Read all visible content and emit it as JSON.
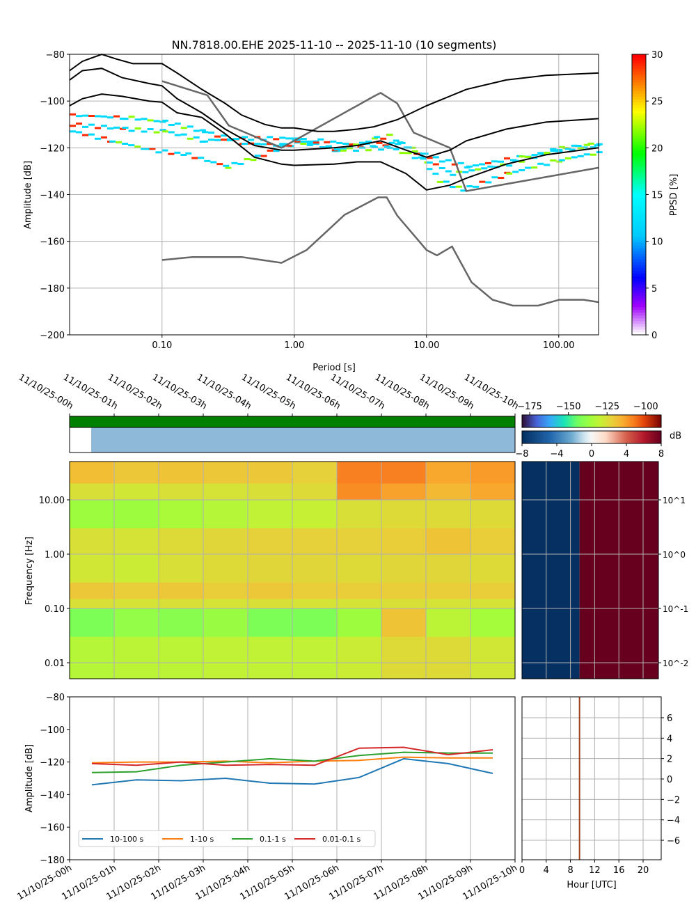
{
  "chart_data": [
    {
      "type": "heatmap",
      "title": "NN.7818.00.EHE   2025-11-10 -- 2025-11-10  (10 segments)",
      "xlabel": "Period [s]",
      "ylabel": "Amplitude [dB]",
      "xscale": "log",
      "xlim": [
        0.02,
        200
      ],
      "ylim": [
        -200,
        -80
      ],
      "xticks": [
        0.1,
        1,
        10,
        100
      ],
      "xtick_labels": [
        "0.10",
        "1.00",
        "10.00",
        "100.00"
      ],
      "yticks": [
        -200,
        -180,
        -160,
        -140,
        -120,
        -100,
        -80
      ],
      "grid": true,
      "colorbar": {
        "label": "PPSD [%]",
        "range": [
          0,
          30
        ],
        "ticks": [
          0,
          5,
          10,
          15,
          20,
          25,
          30
        ],
        "colormap": "pqlx"
      },
      "percentile_curves": [
        [
          [
            0.02,
            -87
          ],
          [
            0.025,
            -83
          ],
          [
            0.035,
            -80
          ],
          [
            0.045,
            -82
          ],
          [
            0.06,
            -84
          ],
          [
            0.1,
            -84
          ],
          [
            0.13,
            -88
          ],
          [
            0.2,
            -95
          ],
          [
            0.3,
            -101
          ],
          [
            0.4,
            -106
          ],
          [
            0.6,
            -110
          ],
          [
            0.8,
            -111.5
          ],
          [
            1,
            -111.5
          ],
          [
            1.5,
            -113
          ],
          [
            2,
            -113
          ],
          [
            3,
            -112
          ],
          [
            4,
            -111
          ],
          [
            6,
            -108
          ],
          [
            10,
            -102
          ],
          [
            20,
            -95
          ],
          [
            40,
            -91
          ],
          [
            80,
            -89
          ],
          [
            200,
            -88
          ]
        ],
        [
          [
            0.02,
            -91
          ],
          [
            0.025,
            -87
          ],
          [
            0.035,
            -86
          ],
          [
            0.05,
            -90
          ],
          [
            0.08,
            -92.5
          ],
          [
            0.1,
            -93.5
          ],
          [
            0.13,
            -99
          ],
          [
            0.2,
            -105
          ],
          [
            0.3,
            -112
          ],
          [
            0.5,
            -119
          ],
          [
            0.8,
            -121
          ],
          [
            1,
            -121
          ],
          [
            2,
            -120
          ],
          [
            3,
            -119
          ],
          [
            4.5,
            -117
          ],
          [
            7,
            -121
          ],
          [
            10,
            -124
          ],
          [
            15,
            -121
          ],
          [
            20,
            -117
          ],
          [
            40,
            -112
          ],
          [
            80,
            -109
          ],
          [
            200,
            -107.5
          ]
        ],
        [
          [
            0.02,
            -102
          ],
          [
            0.025,
            -99
          ],
          [
            0.035,
            -97
          ],
          [
            0.05,
            -98
          ],
          [
            0.08,
            -100
          ],
          [
            0.1,
            -100.5
          ],
          [
            0.13,
            -105
          ],
          [
            0.2,
            -107
          ],
          [
            0.3,
            -114
          ],
          [
            0.5,
            -124
          ],
          [
            0.8,
            -127
          ],
          [
            1,
            -127.5
          ],
          [
            2,
            -127
          ],
          [
            3,
            -126
          ],
          [
            4.5,
            -126
          ],
          [
            7,
            -131
          ],
          [
            10,
            -138
          ],
          [
            15,
            -136
          ],
          [
            20,
            -133
          ],
          [
            40,
            -127
          ],
          [
            80,
            -123
          ],
          [
            200,
            -120
          ]
        ]
      ],
      "noise_models": [
        [
          [
            0.1,
            -91.5
          ],
          [
            0.22,
            -97.5
          ],
          [
            0.32,
            -110.5
          ],
          [
            0.8,
            -120
          ],
          [
            4,
            -98
          ],
          [
            4.5,
            -96.5
          ],
          [
            6,
            -101
          ],
          [
            8,
            -113.5
          ],
          [
            15,
            -120
          ],
          [
            20,
            -138.5
          ],
          [
            200,
            -128.5
          ]
        ],
        [
          [
            0.1,
            -168
          ],
          [
            0.17,
            -166.7
          ],
          [
            0.4,
            -166.7
          ],
          [
            0.8,
            -169.2
          ],
          [
            1.24,
            -163.7
          ],
          [
            2.4,
            -148.7
          ],
          [
            4.3,
            -141.2
          ],
          [
            5,
            -141.2
          ],
          [
            6,
            -149
          ],
          [
            10,
            -163.7
          ],
          [
            12,
            -166
          ],
          [
            15.6,
            -162.2
          ],
          [
            21.9,
            -177.5
          ],
          [
            31.6,
            -185
          ],
          [
            45,
            -187.5
          ],
          [
            70,
            -187.5
          ],
          [
            101,
            -185
          ],
          [
            154,
            -185
          ],
          [
            200,
            -186
          ]
        ]
      ],
      "mode_tracks": [
        [
          [
            0.02,
            -106
          ],
          [
            0.05,
            -107
          ],
          [
            0.1,
            -109
          ],
          [
            0.2,
            -113
          ],
          [
            0.4,
            -118
          ],
          [
            0.8,
            -119
          ],
          [
            1.5,
            -117
          ],
          [
            3,
            -119
          ],
          [
            6,
            -118
          ],
          [
            10,
            -124
          ],
          [
            20,
            -128
          ],
          [
            50,
            -124
          ],
          [
            200,
            -118
          ]
        ],
        [
          [
            0.02,
            -113
          ],
          [
            0.04,
            -117
          ],
          [
            0.08,
            -121
          ],
          [
            0.15,
            -123
          ],
          [
            0.3,
            -128
          ],
          [
            0.5,
            -124
          ],
          [
            1,
            -117
          ],
          [
            2,
            -121
          ],
          [
            4,
            -116
          ],
          [
            5,
            -115
          ],
          [
            8,
            -122
          ],
          [
            12,
            -134
          ],
          [
            18,
            -138
          ],
          [
            40,
            -131
          ],
          [
            100,
            -125
          ],
          [
            200,
            -122
          ]
        ],
        [
          [
            0.02,
            -110
          ],
          [
            0.05,
            -112
          ],
          [
            0.1,
            -113
          ],
          [
            0.2,
            -117
          ],
          [
            0.4,
            -116
          ],
          [
            1,
            -116
          ],
          [
            2,
            -121
          ],
          [
            5,
            -120
          ],
          [
            10,
            -126
          ],
          [
            15,
            -131
          ],
          [
            40,
            -127
          ],
          [
            100,
            -120
          ],
          [
            200,
            -119
          ]
        ]
      ]
    },
    {
      "type": "heatmap",
      "ylabel": "Frequency [Hz]",
      "yscale": "log",
      "yticks": [
        0.01,
        0.1,
        1,
        10
      ],
      "ytick_labels": [
        "0.01",
        "0.10",
        "1.00",
        "10.00"
      ],
      "time_labels": [
        "11/10/25-00h",
        "11/10/25-01h",
        "11/10/25-02h",
        "11/10/25-03h",
        "11/10/25-04h",
        "11/10/25-05h",
        "11/10/25-06h",
        "11/10/25-07h",
        "11/10/25-08h",
        "11/10/25-09h",
        "11/10/25-10h"
      ],
      "colorbar_db": {
        "ticks": [
          -175,
          -150,
          -125,
          -100
        ]
      },
      "colorbar_rel": {
        "label": "dB",
        "ticks": [
          -8,
          -4,
          0,
          4,
          8
        ]
      },
      "data_coverage": {
        "start_hour": 0.5,
        "end_hour": 10
      },
      "freq_band_edges": [
        50,
        20,
        10,
        3,
        1,
        0.3,
        0.15,
        0.1,
        0.03,
        0.005
      ],
      "values_db": [
        [
          -118,
          -125,
          -136,
          -125,
          -127,
          -120,
          -125,
          -142,
          -132
        ],
        [
          -120,
          -127,
          -136,
          -126,
          -128,
          -121,
          -126,
          -138,
          -131
        ],
        [
          -119,
          -125,
          -134,
          -124,
          -125,
          -120,
          -125,
          -140,
          -131
        ],
        [
          -120,
          -126,
          -132,
          -123,
          -124,
          -121,
          -126,
          -137,
          -130
        ],
        [
          -120,
          -125,
          -130,
          -122,
          -123,
          -120,
          -125,
          -142,
          -130
        ],
        [
          -122,
          -124,
          -129,
          -122,
          -123,
          -121,
          -126,
          -142,
          -130
        ],
        [
          -108,
          -110,
          -125,
          -122,
          -124,
          -121,
          -126,
          -136,
          -128
        ],
        [
          -108,
          -113,
          -124,
          -121,
          -123,
          -121,
          -125,
          -119,
          -124
        ],
        [
          -114,
          -117,
          -124,
          -119,
          -123,
          -121,
          -126,
          -131,
          -124
        ],
        [
          -112,
          -114,
          -124,
          -121,
          -124,
          -121,
          -126,
          -135,
          -127
        ]
      ],
      "relative_panel": {
        "yticks_labels": [
          "10^-2",
          "10^-1",
          "10^0",
          "10^1"
        ],
        "split_hour": 9.5,
        "low_value": -8,
        "high_value": 8
      }
    },
    {
      "type": "line",
      "ylabel": "Amplitude [dB]",
      "ylim": [
        -180,
        -80
      ],
      "yticks": [
        -180,
        -160,
        -140,
        -120,
        -100,
        -80
      ],
      "x_hours": [
        0.5,
        1.5,
        2.5,
        3.5,
        4.5,
        5.5,
        6.5,
        7.5,
        8.5,
        9.5
      ],
      "series": [
        {
          "name": "10-100 s",
          "color": "#1f77b4",
          "values": [
            -134,
            -131,
            -131.5,
            -130,
            -133,
            -133.5,
            -129.5,
            -118,
            -121,
            -127
          ]
        },
        {
          "name": "1-10 s",
          "color": "#ff7f0e",
          "values": [
            -120.5,
            -120,
            -120,
            -119.5,
            -120.5,
            -119.5,
            -119,
            -117,
            -117.5,
            -117.5
          ]
        },
        {
          "name": "0.1-1 s",
          "color": "#2ca02c",
          "values": [
            -126.5,
            -126,
            -122,
            -120,
            -118,
            -119.5,
            -116,
            -114,
            -114.5,
            -114.5
          ]
        },
        {
          "name": "0.01-0.1 s",
          "color": "#d62728",
          "values": [
            -121,
            -122,
            -120,
            -122,
            -121.5,
            -122,
            -111.5,
            -111,
            -115.5,
            -112.5
          ]
        }
      ],
      "legend_position": "lower-left",
      "grid": true
    },
    {
      "type": "line",
      "xlabel": "Hour [UTC]",
      "xticks": [
        0,
        4,
        8,
        12,
        16,
        20
      ],
      "yticks": [
        -6,
        -4,
        -2,
        0,
        2,
        4,
        6
      ],
      "vertical_line_hour": 9.5,
      "line_color": "#a0401a",
      "grid": true
    }
  ]
}
